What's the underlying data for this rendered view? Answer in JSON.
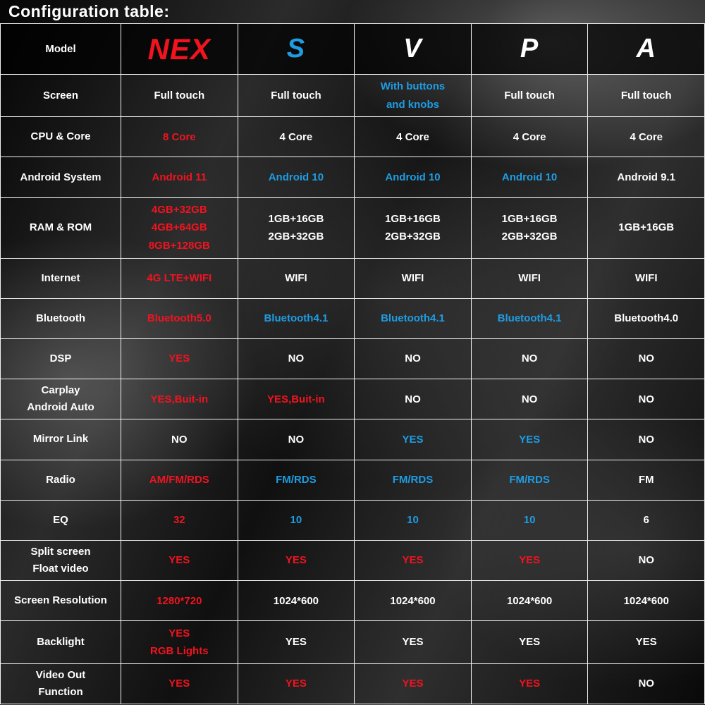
{
  "page_title": "Configuration table:",
  "colors": {
    "red": "#f2131f",
    "blue": "#1e9de3",
    "white": "#ffffff"
  },
  "chart_data": {
    "type": "table",
    "title": "Configuration table:",
    "columns": [
      "Model",
      "NEX",
      "S",
      "V",
      "P",
      "A"
    ],
    "rows": [
      [
        "Screen",
        "Full touch",
        "Full touch",
        "With buttons\nand knobs",
        "Full touch",
        "Full touch"
      ],
      [
        "CPU & Core",
        "8 Core",
        "4 Core",
        "4 Core",
        "4 Core",
        "4 Core"
      ],
      [
        "Android System",
        "Android 11",
        "Android 10",
        "Android 10",
        "Android 10",
        "Android 9.1"
      ],
      [
        "RAM & ROM",
        "4GB+32GB\n4GB+64GB\n8GB+128GB",
        "1GB+16GB\n2GB+32GB",
        "1GB+16GB\n2GB+32GB",
        "1GB+16GB\n2GB+32GB",
        "1GB+16GB"
      ],
      [
        "Internet",
        "4G LTE+WIFI",
        "WIFI",
        "WIFI",
        "WIFI",
        "WIFI"
      ],
      [
        "Bluetooth",
        "Bluetooth5.0",
        "Bluetooth4.1",
        "Bluetooth4.1",
        "Bluetooth4.1",
        "Bluetooth4.0"
      ],
      [
        "DSP",
        "YES",
        "NO",
        "NO",
        "NO",
        "NO"
      ],
      [
        "Carplay\nAndroid Auto",
        "YES,Buit-in",
        "YES,Buit-in",
        "NO",
        "NO",
        "NO"
      ],
      [
        "Mirror Link",
        "NO",
        "NO",
        "YES",
        "YES",
        "NO"
      ],
      [
        "Radio",
        "AM/FM/RDS",
        "FM/RDS",
        "FM/RDS",
        "FM/RDS",
        "FM"
      ],
      [
        "EQ",
        "32",
        "10",
        "10",
        "10",
        "6"
      ],
      [
        "Split screen\nFloat video",
        "YES",
        "YES",
        "YES",
        "YES",
        "NO"
      ],
      [
        "Screen Resolution",
        "1280*720",
        "1024*600",
        "1024*600",
        "1024*600",
        "1024*600"
      ],
      [
        "Backlight",
        "YES\nRGB Lights",
        "YES",
        "YES",
        "YES",
        "YES"
      ],
      [
        "Video Out\nFunction",
        "YES",
        "YES",
        "YES",
        "YES",
        "NO"
      ]
    ]
  },
  "table": {
    "header": {
      "label": "Model",
      "cells": [
        {
          "text": "NEX",
          "color": "red"
        },
        {
          "text": "S",
          "color": "blue"
        },
        {
          "text": "V",
          "color": "white"
        },
        {
          "text": "P",
          "color": "white"
        },
        {
          "text": "A",
          "color": "white"
        }
      ]
    },
    "rows": [
      {
        "label": "Screen",
        "cells": [
          {
            "text": "Full touch",
            "color": "white"
          },
          {
            "text": "Full touch",
            "color": "white"
          },
          {
            "text": "With buttons\nand knobs",
            "color": "blue"
          },
          {
            "text": "Full touch",
            "color": "white"
          },
          {
            "text": "Full touch",
            "color": "white"
          }
        ]
      },
      {
        "label": "CPU & Core",
        "cells": [
          {
            "text": "8 Core",
            "color": "red"
          },
          {
            "text": "4 Core",
            "color": "white"
          },
          {
            "text": "4 Core",
            "color": "white"
          },
          {
            "text": "4 Core",
            "color": "white"
          },
          {
            "text": "4 Core",
            "color": "white"
          }
        ]
      },
      {
        "label": "Android System",
        "cells": [
          {
            "text": "Android 11",
            "color": "red"
          },
          {
            "text": "Android 10",
            "color": "blue"
          },
          {
            "text": "Android 10",
            "color": "blue"
          },
          {
            "text": "Android 10",
            "color": "blue"
          },
          {
            "text": "Android 9.1",
            "color": "white"
          }
        ]
      },
      {
        "label": "RAM & ROM",
        "cells": [
          {
            "text": "4GB+32GB\n4GB+64GB\n8GB+128GB",
            "color": "red"
          },
          {
            "text": "1GB+16GB\n2GB+32GB",
            "color": "white"
          },
          {
            "text": "1GB+16GB\n2GB+32GB",
            "color": "white"
          },
          {
            "text": "1GB+16GB\n2GB+32GB",
            "color": "white"
          },
          {
            "text": "1GB+16GB",
            "color": "white"
          }
        ]
      },
      {
        "label": "Internet",
        "cells": [
          {
            "text": "4G LTE+WIFI",
            "color": "red"
          },
          {
            "text": "WIFI",
            "color": "white"
          },
          {
            "text": "WIFI",
            "color": "white"
          },
          {
            "text": "WIFI",
            "color": "white"
          },
          {
            "text": "WIFI",
            "color": "white"
          }
        ]
      },
      {
        "label": "Bluetooth",
        "cells": [
          {
            "text": "Bluetooth5.0",
            "color": "red"
          },
          {
            "text": "Bluetooth4.1",
            "color": "blue"
          },
          {
            "text": "Bluetooth4.1",
            "color": "blue"
          },
          {
            "text": "Bluetooth4.1",
            "color": "blue"
          },
          {
            "text": "Bluetooth4.0",
            "color": "white"
          }
        ]
      },
      {
        "label": "DSP",
        "cells": [
          {
            "text": "YES",
            "color": "red"
          },
          {
            "text": "NO",
            "color": "white"
          },
          {
            "text": "NO",
            "color": "white"
          },
          {
            "text": "NO",
            "color": "white"
          },
          {
            "text": "NO",
            "color": "white"
          }
        ]
      },
      {
        "label": "Carplay\nAndroid Auto",
        "cells": [
          {
            "text": "YES,Buit-in",
            "color": "red"
          },
          {
            "text": "YES,Buit-in",
            "color": "red"
          },
          {
            "text": "NO",
            "color": "white"
          },
          {
            "text": "NO",
            "color": "white"
          },
          {
            "text": "NO",
            "color": "white"
          }
        ]
      },
      {
        "label": "Mirror Link",
        "cells": [
          {
            "text": "NO",
            "color": "white"
          },
          {
            "text": "NO",
            "color": "white"
          },
          {
            "text": "YES",
            "color": "blue"
          },
          {
            "text": "YES",
            "color": "blue"
          },
          {
            "text": "NO",
            "color": "white"
          }
        ]
      },
      {
        "label": "Radio",
        "cells": [
          {
            "text": "AM/FM/RDS",
            "color": "red"
          },
          {
            "text": "FM/RDS",
            "color": "blue"
          },
          {
            "text": "FM/RDS",
            "color": "blue"
          },
          {
            "text": "FM/RDS",
            "color": "blue"
          },
          {
            "text": "FM",
            "color": "white"
          }
        ]
      },
      {
        "label": "EQ",
        "cells": [
          {
            "text": "32",
            "color": "red"
          },
          {
            "text": "10",
            "color": "blue"
          },
          {
            "text": "10",
            "color": "blue"
          },
          {
            "text": "10",
            "color": "blue"
          },
          {
            "text": "6",
            "color": "white"
          }
        ]
      },
      {
        "label": "Split screen\nFloat video",
        "cells": [
          {
            "text": "YES",
            "color": "red"
          },
          {
            "text": "YES",
            "color": "red"
          },
          {
            "text": "YES",
            "color": "red"
          },
          {
            "text": "YES",
            "color": "red"
          },
          {
            "text": "NO",
            "color": "white"
          }
        ]
      },
      {
        "label": "Screen Resolution",
        "cells": [
          {
            "text": "1280*720",
            "color": "red"
          },
          {
            "text": "1024*600",
            "color": "white"
          },
          {
            "text": "1024*600",
            "color": "white"
          },
          {
            "text": "1024*600",
            "color": "white"
          },
          {
            "text": "1024*600",
            "color": "white"
          }
        ]
      },
      {
        "label": "Backlight",
        "cells": [
          {
            "text": "YES\nRGB Lights",
            "color": "red"
          },
          {
            "text": "YES",
            "color": "white"
          },
          {
            "text": "YES",
            "color": "white"
          },
          {
            "text": "YES",
            "color": "white"
          },
          {
            "text": "YES",
            "color": "white"
          }
        ]
      },
      {
        "label": "Video Out\nFunction",
        "cells": [
          {
            "text": "YES",
            "color": "red"
          },
          {
            "text": "YES",
            "color": "red"
          },
          {
            "text": "YES",
            "color": "red"
          },
          {
            "text": "YES",
            "color": "red"
          },
          {
            "text": "NO",
            "color": "white"
          }
        ]
      }
    ]
  }
}
